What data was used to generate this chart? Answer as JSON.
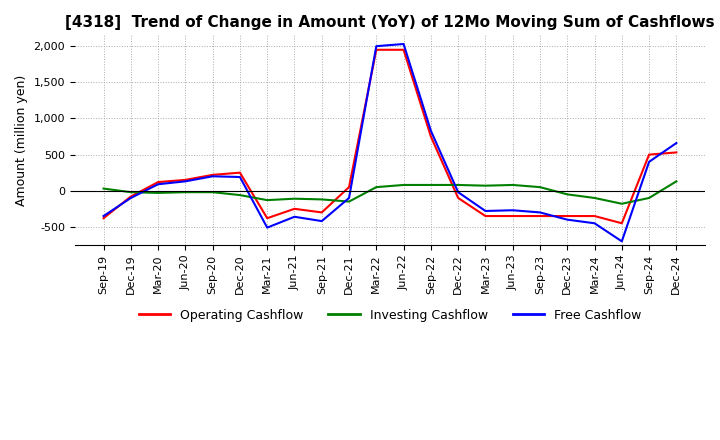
{
  "title": "[4318]  Trend of Change in Amount (YoY) of 12Mo Moving Sum of Cashflows",
  "ylabel": "Amount (million yen)",
  "x_labels": [
    "Sep-19",
    "Dec-19",
    "Mar-20",
    "Jun-20",
    "Sep-20",
    "Dec-20",
    "Mar-21",
    "Jun-21",
    "Sep-21",
    "Dec-21",
    "Mar-22",
    "Jun-22",
    "Sep-22",
    "Dec-22",
    "Mar-23",
    "Jun-23",
    "Sep-23",
    "Dec-23",
    "Mar-24",
    "Jun-24",
    "Sep-24",
    "Dec-24"
  ],
  "operating": [
    -380,
    -80,
    120,
    150,
    220,
    250,
    -380,
    -250,
    -300,
    50,
    1950,
    1950,
    750,
    -100,
    -350,
    -350,
    -350,
    -350,
    -350,
    -450,
    500,
    530
  ],
  "investing": [
    30,
    -20,
    -30,
    -20,
    -20,
    -60,
    -130,
    -110,
    -120,
    -150,
    50,
    80,
    80,
    80,
    70,
    80,
    50,
    -50,
    -100,
    -180,
    -100,
    130
  ],
  "free": [
    -350,
    -100,
    90,
    130,
    200,
    190,
    -510,
    -360,
    -420,
    -100,
    2000,
    2030,
    830,
    -20,
    -280,
    -270,
    -300,
    -400,
    -450,
    -700,
    400,
    660
  ],
  "ylim": [
    -750,
    2150
  ],
  "yticks": [
    -500,
    0,
    500,
    1000,
    1500,
    2000
  ],
  "legend_labels": [
    "Operating Cashflow",
    "Investing Cashflow",
    "Free Cashflow"
  ],
  "line_colors": [
    "#ff0000",
    "#008000",
    "#0000ff"
  ],
  "background_color": "#ffffff",
  "grid_color": "#aaaaaa",
  "title_fontsize": 11,
  "axis_fontsize": 9,
  "tick_fontsize": 8
}
